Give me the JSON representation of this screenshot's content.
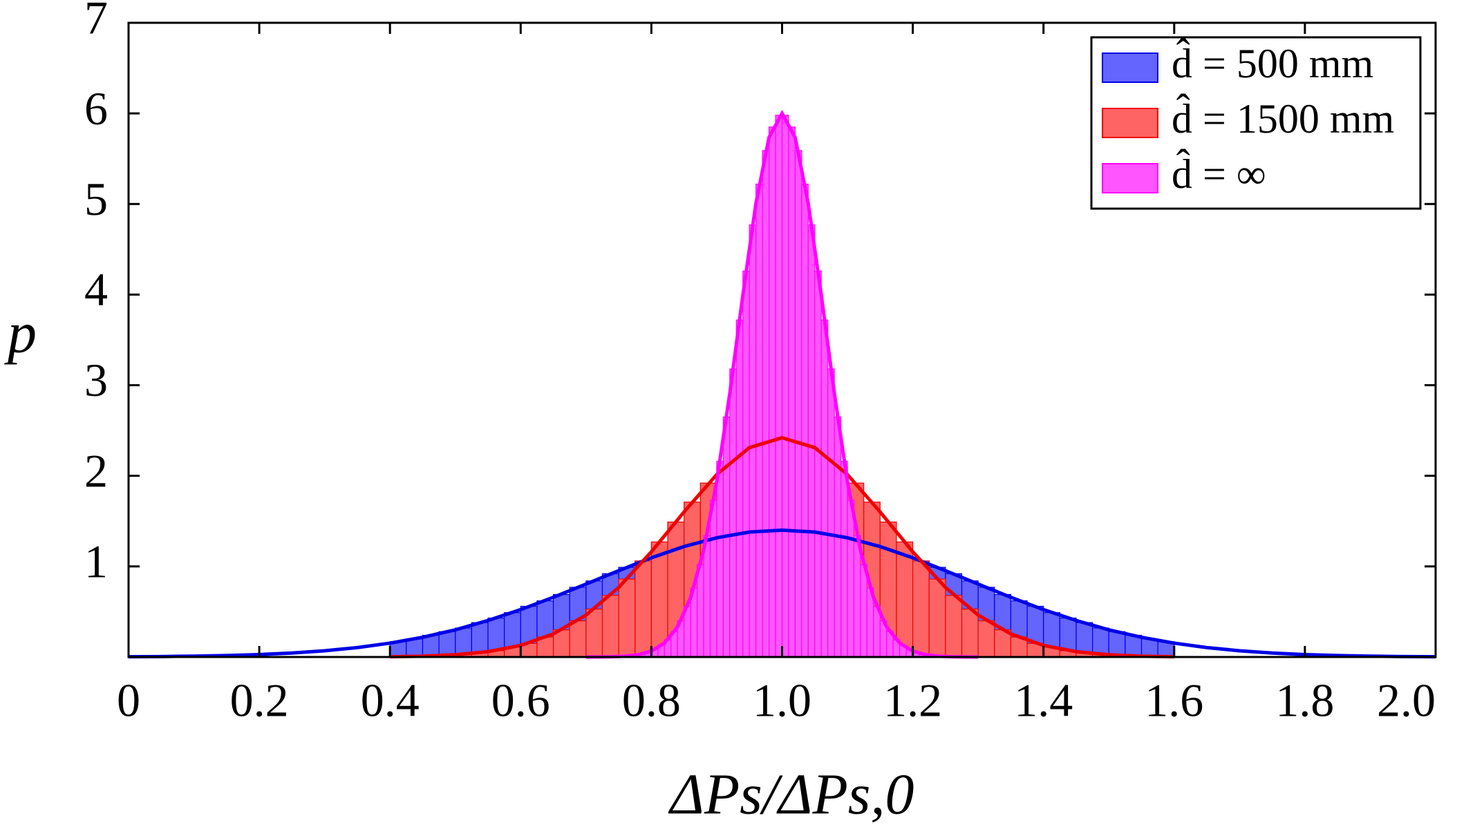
{
  "chart_data": {
    "type": "histogram",
    "xlabel": "ΔPs/ΔPs,0",
    "ylabel": "p",
    "xlim": [
      0,
      2
    ],
    "ylim": [
      0,
      7
    ],
    "xticks": [
      0,
      0.2,
      0.4,
      0.6,
      0.8,
      {
        "value": 1,
        "label": "1.0"
      },
      1.2,
      1.4,
      1.6,
      1.8,
      {
        "value": 2,
        "label": "2.0"
      }
    ],
    "yticks": [
      1,
      2,
      3,
      4,
      5,
      6,
      7
    ],
    "legend": "upper right",
    "series": [
      {
        "name": "d̂ = 500 mm",
        "color": "#6464ff",
        "line_color": "#0000e6",
        "bins": [
          0.4,
          0.425,
          0.45,
          0.475,
          0.5,
          0.525,
          0.55,
          0.575,
          0.6,
          0.625,
          0.65,
          0.675,
          0.7,
          0.725,
          0.75,
          0.775,
          0.8,
          0.825,
          0.85,
          0.875,
          0.9,
          0.925,
          0.95,
          0.975,
          1.0,
          1.025,
          1.05,
          1.075,
          1.1,
          1.125,
          1.15,
          1.175,
          1.2,
          1.225,
          1.25,
          1.275,
          1.3,
          1.325,
          1.35,
          1.375,
          1.4,
          1.425,
          1.45,
          1.475,
          1.5,
          1.525,
          1.55,
          1.575,
          1.6
        ],
        "values": [
          0.17,
          0.2,
          0.24,
          0.28,
          0.32,
          0.38,
          0.43,
          0.49,
          0.56,
          0.62,
          0.69,
          0.77,
          0.84,
          0.92,
          0.99,
          1.06,
          1.13,
          1.19,
          1.25,
          1.3,
          1.34,
          1.37,
          1.39,
          1.4,
          1.4,
          1.39,
          1.37,
          1.34,
          1.3,
          1.25,
          1.19,
          1.13,
          1.06,
          0.99,
          0.92,
          0.84,
          0.77,
          0.69,
          0.62,
          0.56,
          0.49,
          0.43,
          0.38,
          0.32,
          0.28,
          0.24,
          0.2,
          0.17
        ],
        "curve": {
          "x": [
            0,
            0.05,
            0.1,
            0.15,
            0.2,
            0.25,
            0.3,
            0.35,
            0.4,
            0.45,
            0.5,
            0.55,
            0.6,
            0.65,
            0.7,
            0.75,
            0.8,
            0.85,
            0.9,
            0.95,
            1.0,
            1.05,
            1.1,
            1.15,
            1.2,
            1.25,
            1.3,
            1.35,
            1.4,
            1.45,
            1.5,
            1.55,
            1.6,
            1.65,
            1.7,
            1.75,
            1.8,
            1.85,
            1.9,
            1.95,
            2.0
          ],
          "values": [
            0.003,
            0.005,
            0.01,
            0.016,
            0.027,
            0.044,
            0.069,
            0.104,
            0.153,
            0.218,
            0.3,
            0.403,
            0.523,
            0.659,
            0.805,
            0.953,
            1.095,
            1.219,
            1.316,
            1.379,
            1.4,
            1.379,
            1.316,
            1.219,
            1.095,
            0.953,
            0.805,
            0.659,
            0.523,
            0.403,
            0.3,
            0.218,
            0.153,
            0.104,
            0.069,
            0.044,
            0.027,
            0.016,
            0.01,
            0.005,
            0.003
          ]
        }
      },
      {
        "name": "d̂ = 1500 mm",
        "color": "#ff6464",
        "line_color": "#ee0000",
        "bins": [
          0.4,
          0.425,
          0.45,
          0.475,
          0.5,
          0.525,
          0.55,
          0.575,
          0.6,
          0.625,
          0.65,
          0.675,
          0.7,
          0.725,
          0.75,
          0.775,
          0.8,
          0.825,
          0.85,
          0.875,
          0.9,
          0.925,
          0.95,
          0.975,
          1.0,
          1.025,
          1.05,
          1.075,
          1.1,
          1.125,
          1.15,
          1.175,
          1.2,
          1.225,
          1.25,
          1.275,
          1.3,
          1.325,
          1.35,
          1.375,
          1.4,
          1.425,
          1.45,
          1.475,
          1.5,
          1.525,
          1.55,
          1.575,
          1.6
        ],
        "values": [
          0.0,
          0.01,
          0.01,
          0.02,
          0.03,
          0.05,
          0.07,
          0.11,
          0.15,
          0.22,
          0.3,
          0.4,
          0.53,
          0.68,
          0.86,
          1.06,
          1.27,
          1.49,
          1.71,
          1.92,
          2.1,
          2.25,
          2.36,
          2.41,
          2.41,
          2.36,
          2.25,
          2.1,
          1.92,
          1.71,
          1.49,
          1.27,
          1.06,
          0.86,
          0.68,
          0.53,
          0.4,
          0.3,
          0.22,
          0.15,
          0.11,
          0.07,
          0.05,
          0.03,
          0.02,
          0.01,
          0.01,
          0.0
        ],
        "curve": {
          "x": [
            0.4,
            0.45,
            0.5,
            0.55,
            0.6,
            0.65,
            0.7,
            0.75,
            0.8,
            0.85,
            0.9,
            0.95,
            1.0,
            1.05,
            1.1,
            1.15,
            1.2,
            1.25,
            1.3,
            1.35,
            1.4,
            1.45,
            1.5,
            1.55,
            1.6
          ],
          "values": [
            0.003,
            0.009,
            0.025,
            0.059,
            0.128,
            0.255,
            0.463,
            0.768,
            1.161,
            1.601,
            2.014,
            2.311,
            2.42,
            2.311,
            2.014,
            1.601,
            1.161,
            0.768,
            0.463,
            0.255,
            0.128,
            0.059,
            0.025,
            0.009,
            0.003
          ]
        }
      },
      {
        "name": "d̂ = ∞",
        "color": "#ff55ff",
        "line_color": "#ff00ff",
        "bins": [
          0.7,
          0.71,
          0.72,
          0.73,
          0.74,
          0.75,
          0.76,
          0.77,
          0.78,
          0.79,
          0.8,
          0.81,
          0.82,
          0.83,
          0.84,
          0.85,
          0.86,
          0.87,
          0.88,
          0.89,
          0.9,
          0.91,
          0.92,
          0.93,
          0.94,
          0.95,
          0.96,
          0.97,
          0.98,
          0.99,
          1.0,
          1.01,
          1.02,
          1.03,
          1.04,
          1.05,
          1.06,
          1.07,
          1.08,
          1.09,
          1.1,
          1.11,
          1.12,
          1.13,
          1.14,
          1.15,
          1.16,
          1.17,
          1.18,
          1.19,
          1.2,
          1.21,
          1.22,
          1.23,
          1.24,
          1.25,
          1.26,
          1.27,
          1.28,
          1.29,
          1.3
        ],
        "values": [
          0.0,
          0.0,
          0.0,
          0.0,
          0.0,
          0.01,
          0.01,
          0.02,
          0.03,
          0.05,
          0.08,
          0.13,
          0.19,
          0.28,
          0.4,
          0.56,
          0.76,
          1.02,
          1.34,
          1.73,
          2.16,
          2.65,
          3.18,
          3.72,
          4.26,
          4.77,
          5.22,
          5.59,
          5.85,
          5.98,
          5.98,
          5.85,
          5.59,
          5.22,
          4.77,
          4.26,
          3.72,
          3.18,
          2.65,
          2.16,
          1.73,
          1.34,
          1.02,
          0.76,
          0.56,
          0.4,
          0.28,
          0.19,
          0.13,
          0.08,
          0.05,
          0.03,
          0.02,
          0.01,
          0.01,
          0.0,
          0.0,
          0.0,
          0.0,
          0.0
        ],
        "curve": {
          "x": [
            0.7,
            0.72,
            0.74,
            0.76,
            0.78,
            0.8,
            0.82,
            0.84,
            0.86,
            0.88,
            0.9,
            0.92,
            0.94,
            0.96,
            0.98,
            1.0,
            1.02,
            1.04,
            1.06,
            1.08,
            1.1,
            1.12,
            1.14,
            1.16,
            1.18,
            1.2,
            1.22,
            1.24,
            1.26,
            1.28,
            1.3
          ],
          "values": [
            0.0,
            0.001,
            0.003,
            0.009,
            0.025,
            0.065,
            0.154,
            0.332,
            0.654,
            1.178,
            1.937,
            2.91,
            3.994,
            5.007,
            5.735,
            6.0,
            5.735,
            5.007,
            3.994,
            2.91,
            1.937,
            1.178,
            0.654,
            0.332,
            0.154,
            0.065,
            0.025,
            0.009,
            0.003,
            0.001,
            0.0
          ]
        }
      }
    ]
  }
}
